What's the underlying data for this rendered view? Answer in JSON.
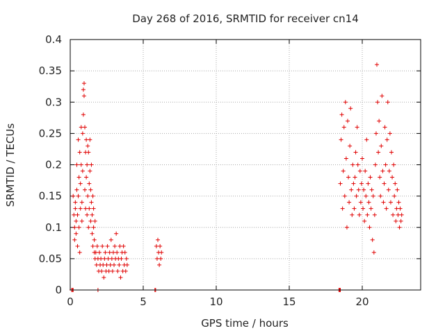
{
  "chart_data": {
    "type": "scatter",
    "title": "Day 268 of 2016, SRMTID for receiver cn14",
    "xlabel": "GPS time / hours",
    "ylabel": "SRMTID / TECUs",
    "xlim": [
      0,
      24
    ],
    "ylim": [
      0,
      0.4
    ],
    "xticks": [
      0,
      5,
      10,
      15,
      20
    ],
    "xtick_labels": [
      "0",
      "5",
      "10",
      "15",
      "20"
    ],
    "yticks": [
      0,
      0.05,
      0.1,
      0.15,
      0.2,
      0.25,
      0.3,
      0.35,
      0.4
    ],
    "ytick_labels": [
      "0",
      "0.05",
      "0.1",
      "0.15",
      "0.2",
      "0.25",
      "0.3",
      "0.35",
      "0.4"
    ],
    "grid": true,
    "marker": "+",
    "color": "#e00000",
    "series": [
      {
        "name": "SRMTID",
        "points": [
          [
            0.1,
            0.0
          ],
          [
            0.15,
            0.0
          ],
          [
            0.2,
            0.0
          ],
          [
            0.2,
            0.15
          ],
          [
            0.25,
            0.12
          ],
          [
            0.3,
            0.08
          ],
          [
            0.3,
            0.1
          ],
          [
            0.35,
            0.13
          ],
          [
            0.35,
            0.14
          ],
          [
            0.4,
            0.09
          ],
          [
            0.4,
            0.11
          ],
          [
            0.45,
            0.16
          ],
          [
            0.45,
            0.2
          ],
          [
            0.5,
            0.07
          ],
          [
            0.5,
            0.12
          ],
          [
            0.55,
            0.15
          ],
          [
            0.55,
            0.24
          ],
          [
            0.6,
            0.1
          ],
          [
            0.6,
            0.18
          ],
          [
            0.65,
            0.22
          ],
          [
            0.65,
            0.06
          ],
          [
            0.7,
            0.13
          ],
          [
            0.7,
            0.17
          ],
          [
            0.75,
            0.2
          ],
          [
            0.75,
            0.26
          ],
          [
            0.8,
            0.11
          ],
          [
            0.8,
            0.14
          ],
          [
            0.85,
            0.19
          ],
          [
            0.85,
            0.25
          ],
          [
            0.9,
            0.28
          ],
          [
            0.9,
            0.32
          ],
          [
            0.95,
            0.33
          ],
          [
            0.95,
            0.31
          ],
          [
            1.0,
            0.26
          ],
          [
            1.0,
            0.16
          ],
          [
            1.05,
            0.22
          ],
          [
            1.05,
            0.13
          ],
          [
            1.1,
            0.24
          ],
          [
            1.1,
            0.18
          ],
          [
            1.15,
            0.12
          ],
          [
            1.15,
            0.2
          ],
          [
            1.2,
            0.23
          ],
          [
            1.2,
            0.15
          ],
          [
            1.25,
            0.1
          ],
          [
            1.25,
            0.22
          ],
          [
            1.3,
            0.17
          ],
          [
            1.3,
            0.13
          ],
          [
            1.35,
            0.19
          ],
          [
            1.35,
            0.24
          ],
          [
            1.4,
            0.16
          ],
          [
            1.4,
            0.11
          ],
          [
            1.45,
            0.14
          ],
          [
            1.45,
            0.2
          ],
          [
            1.5,
            0.12
          ],
          [
            1.5,
            0.09
          ],
          [
            1.55,
            0.15
          ],
          [
            1.55,
            0.07
          ],
          [
            1.6,
            0.1
          ],
          [
            1.6,
            0.13
          ],
          [
            1.65,
            0.08
          ],
          [
            1.65,
            0.06
          ],
          [
            1.7,
            0.11
          ],
          [
            1.7,
            0.05
          ],
          [
            1.75,
            0.06
          ],
          [
            1.8,
            0.04
          ],
          [
            1.85,
            0.07
          ],
          [
            1.9,
            0.05
          ],
          [
            1.95,
            0.03
          ],
          [
            2.0,
            0.06
          ],
          [
            2.05,
            0.04
          ],
          [
            2.1,
            0.05
          ],
          [
            2.15,
            0.03
          ],
          [
            2.2,
            0.07
          ],
          [
            2.25,
            0.04
          ],
          [
            2.3,
            0.02
          ],
          [
            2.35,
            0.05
          ],
          [
            2.4,
            0.06
          ],
          [
            2.45,
            0.03
          ],
          [
            2.5,
            0.04
          ],
          [
            2.55,
            0.07
          ],
          [
            2.6,
            0.05
          ],
          [
            2.65,
            0.03
          ],
          [
            2.7,
            0.06
          ],
          [
            2.75,
            0.04
          ],
          [
            2.8,
            0.08
          ],
          [
            2.85,
            0.05
          ],
          [
            2.9,
            0.03
          ],
          [
            2.95,
            0.06
          ],
          [
            3.0,
            0.04
          ],
          [
            3.05,
            0.07
          ],
          [
            3.1,
            0.05
          ],
          [
            3.15,
            0.09
          ],
          [
            3.2,
            0.06
          ],
          [
            3.25,
            0.03
          ],
          [
            3.3,
            0.05
          ],
          [
            3.35,
            0.04
          ],
          [
            3.4,
            0.07
          ],
          [
            3.45,
            0.02
          ],
          [
            3.5,
            0.05
          ],
          [
            3.55,
            0.06
          ],
          [
            3.6,
            0.03
          ],
          [
            3.65,
            0.07
          ],
          [
            3.7,
            0.04
          ],
          [
            3.75,
            0.06
          ],
          [
            3.8,
            0.03
          ],
          [
            3.85,
            0.05
          ],
          [
            3.9,
            0.04
          ],
          [
            1.9,
            0.0
          ],
          [
            5.8,
            0.0
          ],
          [
            5.85,
            0.0
          ],
          [
            5.9,
            0.07
          ],
          [
            5.95,
            0.05
          ],
          [
            6.0,
            0.08
          ],
          [
            6.05,
            0.06
          ],
          [
            6.1,
            0.04
          ],
          [
            6.15,
            0.07
          ],
          [
            6.2,
            0.05
          ],
          [
            6.25,
            0.06
          ],
          [
            18.4,
            0.0
          ],
          [
            18.45,
            0.0
          ],
          [
            18.5,
            0.0
          ],
          [
            18.5,
            0.17
          ],
          [
            18.55,
            0.24
          ],
          [
            18.6,
            0.28
          ],
          [
            18.65,
            0.13
          ],
          [
            18.7,
            0.19
          ],
          [
            18.75,
            0.26
          ],
          [
            18.8,
            0.15
          ],
          [
            18.85,
            0.3
          ],
          [
            18.9,
            0.21
          ],
          [
            18.95,
            0.1
          ],
          [
            19.0,
            0.27
          ],
          [
            19.05,
            0.18
          ],
          [
            19.1,
            0.14
          ],
          [
            19.15,
            0.23
          ],
          [
            19.2,
            0.29
          ],
          [
            19.25,
            0.16
          ],
          [
            19.3,
            0.12
          ],
          [
            19.35,
            0.2
          ],
          [
            19.4,
            0.17
          ],
          [
            19.45,
            0.13
          ],
          [
            19.5,
            0.18
          ],
          [
            19.55,
            0.22
          ],
          [
            19.6,
            0.15
          ],
          [
            19.65,
            0.26
          ],
          [
            19.7,
            0.2
          ],
          [
            19.75,
            0.16
          ],
          [
            19.8,
            0.12
          ],
          [
            19.85,
            0.19
          ],
          [
            19.9,
            0.14
          ],
          [
            19.95,
            0.17
          ],
          [
            20.0,
            0.21
          ],
          [
            20.05,
            0.13
          ],
          [
            20.1,
            0.16
          ],
          [
            20.15,
            0.11
          ],
          [
            20.2,
            0.19
          ],
          [
            20.25,
            0.15
          ],
          [
            20.3,
            0.24
          ],
          [
            20.35,
            0.12
          ],
          [
            20.4,
            0.17
          ],
          [
            20.45,
            0.14
          ],
          [
            20.5,
            0.1
          ],
          [
            20.55,
            0.18
          ],
          [
            20.6,
            0.13
          ],
          [
            20.65,
            0.16
          ],
          [
            20.7,
            0.08
          ],
          [
            20.75,
            0.15
          ],
          [
            20.8,
            0.06
          ],
          [
            20.85,
            0.12
          ],
          [
            20.9,
            0.2
          ],
          [
            20.95,
            0.25
          ],
          [
            21.0,
            0.36
          ],
          [
            21.05,
            0.3
          ],
          [
            21.1,
            0.22
          ],
          [
            21.15,
            0.27
          ],
          [
            21.2,
            0.18
          ],
          [
            21.25,
            0.15
          ],
          [
            21.3,
            0.23
          ],
          [
            21.35,
            0.31
          ],
          [
            21.4,
            0.19
          ],
          [
            21.45,
            0.14
          ],
          [
            21.5,
            0.17
          ],
          [
            21.55,
            0.26
          ],
          [
            21.6,
            0.2
          ],
          [
            21.65,
            0.13
          ],
          [
            21.7,
            0.24
          ],
          [
            21.75,
            0.3
          ],
          [
            21.8,
            0.16
          ],
          [
            21.85,
            0.19
          ],
          [
            21.9,
            0.25
          ],
          [
            21.95,
            0.14
          ],
          [
            22.0,
            0.22
          ],
          [
            22.05,
            0.18
          ],
          [
            22.1,
            0.12
          ],
          [
            22.15,
            0.2
          ],
          [
            22.2,
            0.15
          ],
          [
            22.25,
            0.17
          ],
          [
            22.3,
            0.11
          ],
          [
            22.35,
            0.13
          ],
          [
            22.4,
            0.16
          ],
          [
            22.45,
            0.12
          ],
          [
            22.5,
            0.14
          ],
          [
            22.55,
            0.1
          ],
          [
            22.6,
            0.13
          ],
          [
            22.65,
            0.11
          ],
          [
            22.7,
            0.12
          ]
        ]
      }
    ]
  }
}
